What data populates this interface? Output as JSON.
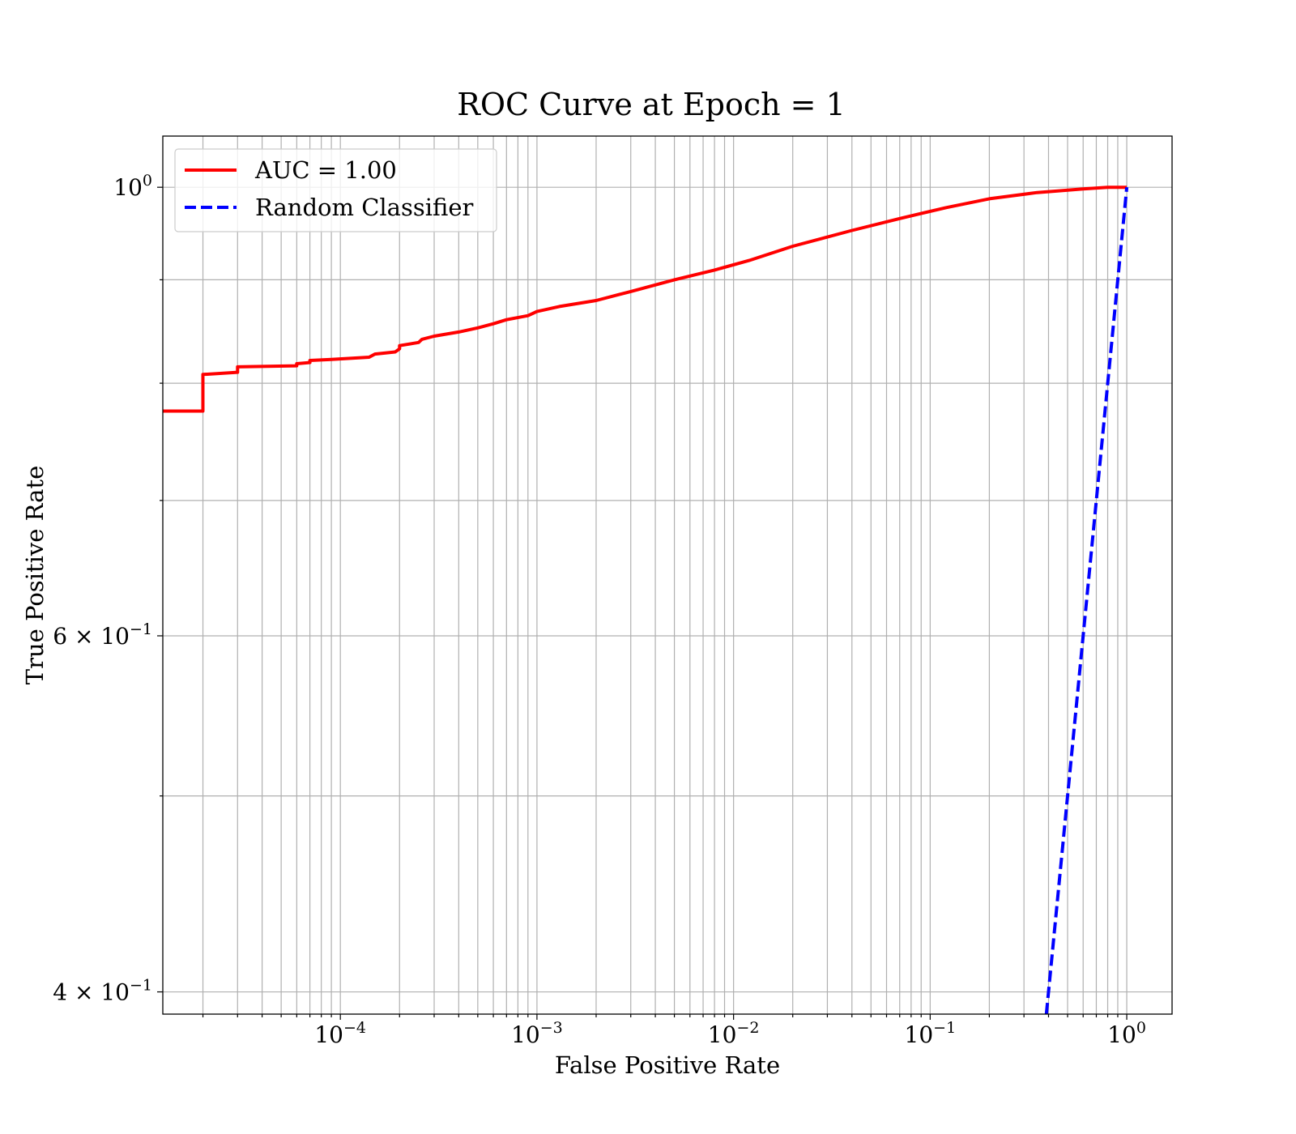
{
  "chart_data": {
    "type": "line",
    "title": "ROC Curve at Epoch = 1",
    "xlabel": "False Positive Rate",
    "ylabel": "True Positive Rate",
    "xscale": "log",
    "yscale": "log",
    "xlim": [
      1.25e-05,
      1.7
    ],
    "ylim": [
      0.39,
      1.06
    ],
    "grid": true,
    "legend_position": "upper-left",
    "xticks": [
      {
        "value": 0.0001,
        "base": "10",
        "exp": "−4"
      },
      {
        "value": 0.001,
        "base": "10",
        "exp": "−3"
      },
      {
        "value": 0.01,
        "base": "10",
        "exp": "−2"
      },
      {
        "value": 0.1,
        "base": "10",
        "exp": "−1"
      },
      {
        "value": 1,
        "base": "10",
        "exp": "0"
      }
    ],
    "yticks": [
      {
        "value": 1.0,
        "base": "10",
        "exp": "0"
      },
      {
        "value": 0.6,
        "base": "6 × 10",
        "exp": "−1"
      },
      {
        "value": 0.4,
        "base": "4 × 10",
        "exp": "−1"
      }
    ],
    "yminor_ticks": [
      0.5,
      0.7,
      0.8,
      0.9
    ],
    "series": [
      {
        "name": "AUC = 1.00",
        "color": "#ff0000",
        "style": "solid",
        "x": [
          1.25e-05,
          2e-05,
          2e-05,
          3e-05,
          3e-05,
          6e-05,
          6e-05,
          7e-05,
          7e-05,
          9e-05,
          0.00014,
          0.00015,
          0.00019,
          0.0002,
          0.0002,
          0.00025,
          0.00026,
          0.0003,
          0.0004,
          0.0005,
          0.0006,
          0.0007,
          0.0009,
          0.001,
          0.0013,
          0.002,
          0.003,
          0.005,
          0.008,
          0.012,
          0.02,
          0.04,
          0.07,
          0.12,
          0.2,
          0.35,
          0.6,
          0.8,
          1.0
        ],
        "y": [
          0.775,
          0.775,
          0.808,
          0.81,
          0.815,
          0.816,
          0.818,
          0.819,
          0.821,
          0.822,
          0.824,
          0.827,
          0.829,
          0.832,
          0.835,
          0.838,
          0.841,
          0.844,
          0.848,
          0.852,
          0.856,
          0.86,
          0.864,
          0.868,
          0.873,
          0.879,
          0.888,
          0.9,
          0.91,
          0.92,
          0.935,
          0.952,
          0.965,
          0.977,
          0.987,
          0.994,
          0.998,
          1.0,
          1.0
        ]
      },
      {
        "name": "Random Classifier",
        "color": "#0000ff",
        "style": "dashed",
        "x": [
          0.39,
          1.0
        ],
        "y": [
          0.39,
          1.0
        ]
      }
    ]
  }
}
